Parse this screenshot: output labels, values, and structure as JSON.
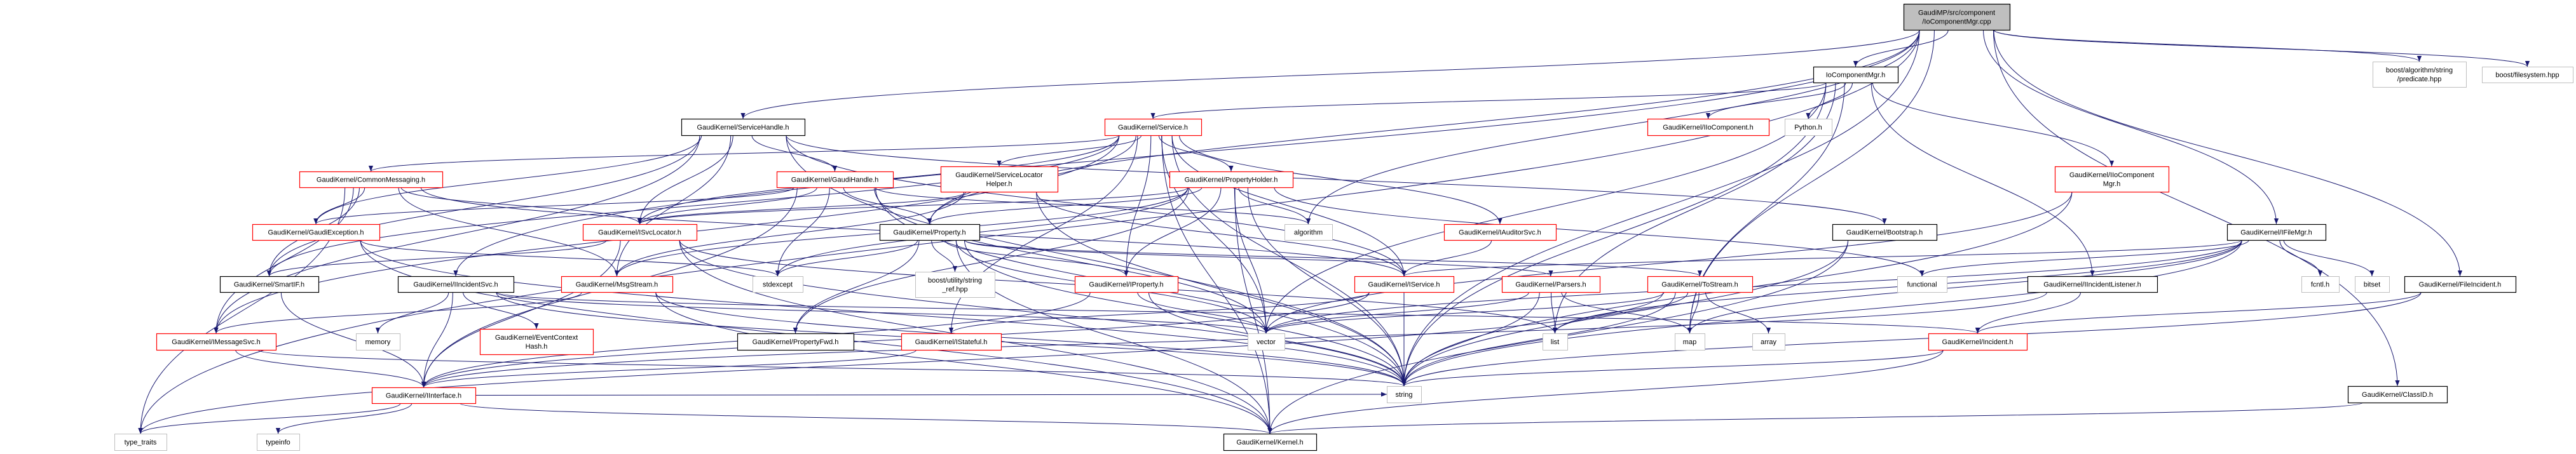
{
  "graph": {
    "edge_color": "#191970",
    "kind_colors": {
      "root": "#bfbfbf",
      "red": "#ff0000",
      "gray": "#bfbfbf",
      "black": "#000000"
    },
    "nodes": [
      {
        "id": "root",
        "kind": "root",
        "lines": [
          "GaudiMP/src/component",
          "/IoComponentMgr.cpp"
        ]
      },
      {
        "id": "iocmgr",
        "kind": "black",
        "lines": [
          "IoComponentMgr.h"
        ]
      },
      {
        "id": "predicate",
        "kind": "gray",
        "lines": [
          "boost/algorithm/string",
          "/predicate.hpp"
        ]
      },
      {
        "id": "filesystem",
        "kind": "gray",
        "lines": [
          "boost/filesystem.hpp"
        ]
      },
      {
        "id": "svchandle",
        "kind": "black",
        "lines": [
          "GaudiKernel/ServiceHandle.h"
        ]
      },
      {
        "id": "service",
        "kind": "red",
        "lines": [
          "GaudiKernel/Service.h"
        ]
      },
      {
        "id": "iiocomp",
        "kind": "red",
        "lines": [
          "GaudiKernel/IIoComponent.h"
        ]
      },
      {
        "id": "python",
        "kind": "gray",
        "lines": [
          "Python.h"
        ]
      },
      {
        "id": "iiocompmgr",
        "kind": "red",
        "lines": [
          "GaudiKernel/IIoComponent",
          "Mgr.h"
        ]
      },
      {
        "id": "commonmsg",
        "kind": "red",
        "lines": [
          "GaudiKernel/CommonMessaging.h"
        ]
      },
      {
        "id": "gaudihandle",
        "kind": "red",
        "lines": [
          "GaudiKernel/GaudiHandle.h"
        ]
      },
      {
        "id": "slhelper",
        "kind": "red",
        "lines": [
          "GaudiKernel/ServiceLocator",
          "Helper.h"
        ]
      },
      {
        "id": "propholder",
        "kind": "red",
        "lines": [
          "GaudiKernel/PropertyHolder.h"
        ]
      },
      {
        "id": "bootstrap",
        "kind": "black",
        "lines": [
          "GaudiKernel/Bootstrap.h"
        ]
      },
      {
        "id": "gaudiexc",
        "kind": "red",
        "lines": [
          "GaudiKernel/GaudiException.h"
        ]
      },
      {
        "id": "isvcloc",
        "kind": "red",
        "lines": [
          "GaudiKernel/ISvcLocator.h"
        ]
      },
      {
        "id": "property",
        "kind": "black",
        "lines": [
          "GaudiKernel/Property.h"
        ]
      },
      {
        "id": "algorithm",
        "kind": "gray",
        "lines": [
          "algorithm"
        ]
      },
      {
        "id": "iauditor",
        "kind": "red",
        "lines": [
          "GaudiKernel/IAuditorSvc.h"
        ]
      },
      {
        "id": "ifilemgr",
        "kind": "black",
        "lines": [
          "GaudiKernel/IFileMgr.h"
        ]
      },
      {
        "id": "smartif",
        "kind": "black",
        "lines": [
          "GaudiKernel/SmartIF.h"
        ]
      },
      {
        "id": "iincsvc",
        "kind": "black",
        "lines": [
          "GaudiKernel/IIncidentSvc.h"
        ]
      },
      {
        "id": "msgstream",
        "kind": "red",
        "lines": [
          "GaudiKernel/MsgStream.h"
        ]
      },
      {
        "id": "stdexcept",
        "kind": "gray",
        "lines": [
          "stdexcept"
        ]
      },
      {
        "id": "stringref",
        "kind": "gray",
        "lines": [
          "boost/utility/string",
          "_ref.hpp"
        ]
      },
      {
        "id": "iproperty",
        "kind": "red",
        "lines": [
          "GaudiKernel/IProperty.h"
        ]
      },
      {
        "id": "iservice",
        "kind": "red",
        "lines": [
          "GaudiKernel/IService.h"
        ]
      },
      {
        "id": "parsers",
        "kind": "red",
        "lines": [
          "GaudiKernel/Parsers.h"
        ]
      },
      {
        "id": "tostream",
        "kind": "red",
        "lines": [
          "GaudiKernel/ToStream.h"
        ]
      },
      {
        "id": "functional",
        "kind": "gray",
        "lines": [
          "functional"
        ]
      },
      {
        "id": "iinclistener",
        "kind": "black",
        "lines": [
          "GaudiKernel/IIncidentListener.h"
        ]
      },
      {
        "id": "fcntl",
        "kind": "gray",
        "lines": [
          "fcntl.h"
        ]
      },
      {
        "id": "bitset",
        "kind": "gray",
        "lines": [
          "bitset"
        ]
      },
      {
        "id": "fileinc",
        "kind": "black",
        "lines": [
          "GaudiKernel/FileIncident.h"
        ]
      },
      {
        "id": "imsgsvc",
        "kind": "red",
        "lines": [
          "GaudiKernel/IMessageSvc.h"
        ]
      },
      {
        "id": "memory",
        "kind": "gray",
        "lines": [
          "memory"
        ]
      },
      {
        "id": "evctxhash",
        "kind": "red",
        "lines": [
          "GaudiKernel/EventContext",
          "Hash.h"
        ]
      },
      {
        "id": "propfwd",
        "kind": "black",
        "lines": [
          "GaudiKernel/PropertyFwd.h"
        ]
      },
      {
        "id": "istateful",
        "kind": "red",
        "lines": [
          "GaudiKernel/IStateful.h"
        ]
      },
      {
        "id": "vector",
        "kind": "gray",
        "lines": [
          "vector"
        ]
      },
      {
        "id": "list",
        "kind": "gray",
        "lines": [
          "list"
        ]
      },
      {
        "id": "map",
        "kind": "gray",
        "lines": [
          "map"
        ]
      },
      {
        "id": "array",
        "kind": "gray",
        "lines": [
          "array"
        ]
      },
      {
        "id": "incident",
        "kind": "red",
        "lines": [
          "GaudiKernel/Incident.h"
        ]
      },
      {
        "id": "iinterface",
        "kind": "red",
        "lines": [
          "GaudiKernel/IInterface.h"
        ]
      },
      {
        "id": "string",
        "kind": "gray",
        "lines": [
          "string"
        ]
      },
      {
        "id": "classid",
        "kind": "black",
        "lines": [
          "GaudiKernel/ClassID.h"
        ]
      },
      {
        "id": "typetraits",
        "kind": "gray",
        "lines": [
          "type_traits"
        ]
      },
      {
        "id": "typeinfo",
        "kind": "gray",
        "lines": [
          "typeinfo"
        ]
      },
      {
        "id": "kernel",
        "kind": "black",
        "lines": [
          "GaudiKernel/Kernel.h"
        ]
      }
    ],
    "edges": [
      [
        "root",
        "iocmgr"
      ],
      [
        "root",
        "predicate"
      ],
      [
        "root",
        "filesystem"
      ],
      [
        "root",
        "svchandle"
      ],
      [
        "root",
        "ifilemgr"
      ],
      [
        "root",
        "fileinc"
      ],
      [
        "root",
        "iincsvc"
      ],
      [
        "root",
        "typetraits"
      ],
      [
        "root",
        "property"
      ],
      [
        "root",
        "string"
      ],
      [
        "root",
        "map"
      ],
      [
        "root",
        "algorithm"
      ],
      [
        "root",
        "classid"
      ],
      [
        "iocmgr",
        "service"
      ],
      [
        "iocmgr",
        "iiocomp"
      ],
      [
        "iocmgr",
        "python"
      ],
      [
        "iocmgr",
        "iiocompmgr"
      ],
      [
        "iocmgr",
        "iinclistener"
      ],
      [
        "iocmgr",
        "list"
      ],
      [
        "iocmgr",
        "string"
      ],
      [
        "iocmgr",
        "vector"
      ],
      [
        "iocmgr",
        "map"
      ],
      [
        "svchandle",
        "gaudihandle"
      ],
      [
        "svchandle",
        "imsgsvc"
      ],
      [
        "svchandle",
        "isvcloc"
      ],
      [
        "svchandle",
        "iservice"
      ],
      [
        "svchandle",
        "msgstream"
      ],
      [
        "svchandle",
        "gaudiexc"
      ],
      [
        "svchandle",
        "bootstrap"
      ],
      [
        "svchandle",
        "smartif"
      ],
      [
        "svchandle",
        "string"
      ],
      [
        "service",
        "slhelper"
      ],
      [
        "service",
        "propholder"
      ],
      [
        "service",
        "property"
      ],
      [
        "service",
        "iservice"
      ],
      [
        "service",
        "iauditor"
      ],
      [
        "service",
        "commonmsg"
      ],
      [
        "service",
        "isvcloc"
      ],
      [
        "service",
        "smartif"
      ],
      [
        "service",
        "imsgsvc"
      ],
      [
        "service",
        "kernel"
      ],
      [
        "service",
        "vector"
      ],
      [
        "service",
        "string"
      ],
      [
        "service",
        "istateful"
      ],
      [
        "service",
        "iproperty"
      ],
      [
        "commonmsg",
        "gaudiexc"
      ],
      [
        "commonmsg",
        "imsgsvc"
      ],
      [
        "commonmsg",
        "msgstream"
      ],
      [
        "commonmsg",
        "smartif"
      ],
      [
        "commonmsg",
        "isvcloc"
      ],
      [
        "commonmsg",
        "iservice"
      ],
      [
        "commonmsg",
        "typetraits"
      ],
      [
        "gaudihandle",
        "gaudiexc"
      ],
      [
        "gaudihandle",
        "isvcloc"
      ],
      [
        "gaudihandle",
        "property"
      ],
      [
        "gaudihandle",
        "stdexcept"
      ],
      [
        "gaudihandle",
        "algorithm"
      ],
      [
        "gaudihandle",
        "string"
      ],
      [
        "gaudihandle",
        "vector"
      ],
      [
        "gaudihandle",
        "iinterface"
      ],
      [
        "slhelper",
        "isvcloc"
      ],
      [
        "slhelper",
        "iservice"
      ],
      [
        "slhelper",
        "msgstream"
      ],
      [
        "slhelper",
        "string"
      ],
      [
        "propholder",
        "property"
      ],
      [
        "propholder",
        "iproperty"
      ],
      [
        "propholder",
        "algorithm"
      ],
      [
        "propholder",
        "stdexcept"
      ],
      [
        "propholder",
        "functional"
      ],
      [
        "propholder",
        "vector"
      ],
      [
        "propholder",
        "string"
      ],
      [
        "propholder",
        "kernel"
      ],
      [
        "propholder",
        "propfwd"
      ],
      [
        "propholder",
        "isvcloc"
      ],
      [
        "propholder",
        "msgstream"
      ],
      [
        "property",
        "iproperty"
      ],
      [
        "property",
        "propfwd"
      ],
      [
        "property",
        "stdexcept"
      ],
      [
        "property",
        "stringref"
      ],
      [
        "property",
        "parsers"
      ],
      [
        "property",
        "tostream"
      ],
      [
        "property",
        "kernel"
      ],
      [
        "property",
        "string"
      ],
      [
        "property",
        "vector"
      ],
      [
        "gaudiexc",
        "kernel"
      ],
      [
        "gaudiexc",
        "string"
      ],
      [
        "gaudiexc",
        "stdexcept"
      ],
      [
        "isvcloc",
        "iinterface"
      ],
      [
        "isvcloc",
        "smartif"
      ],
      [
        "isvcloc",
        "kernel"
      ],
      [
        "isvcloc",
        "string"
      ],
      [
        "isvcloc",
        "list"
      ],
      [
        "iauditor",
        "iservice"
      ],
      [
        "bootstrap",
        "string"
      ],
      [
        "bootstrap",
        "kernel"
      ],
      [
        "iiocompmgr",
        "string"
      ],
      [
        "iiocompmgr",
        "vector"
      ],
      [
        "ifilemgr",
        "functional"
      ],
      [
        "ifilemgr",
        "fcntl"
      ],
      [
        "ifilemgr",
        "bitset"
      ],
      [
        "ifilemgr",
        "map"
      ],
      [
        "ifilemgr",
        "list"
      ],
      [
        "ifilemgr",
        "string"
      ],
      [
        "ifilemgr",
        "vector"
      ],
      [
        "ifilemgr",
        "iservice"
      ],
      [
        "fileinc",
        "incident"
      ],
      [
        "fileinc",
        "string"
      ],
      [
        "classid",
        "kernel"
      ],
      [
        "iinclistener",
        "incident"
      ],
      [
        "iinclistener",
        "iinterface"
      ],
      [
        "incident",
        "string"
      ],
      [
        "incident",
        "kernel"
      ],
      [
        "iincsvc",
        "memory"
      ],
      [
        "iincsvc",
        "iinterface"
      ],
      [
        "iincsvc",
        "evctxhash"
      ],
      [
        "iincsvc",
        "string"
      ],
      [
        "iincsvc",
        "vector"
      ],
      [
        "iincsvc",
        "incident"
      ],
      [
        "smartif",
        "iinterface"
      ],
      [
        "imsgsvc",
        "iinterface"
      ],
      [
        "imsgsvc",
        "string"
      ],
      [
        "msgstream",
        "imsgsvc"
      ],
      [
        "msgstream",
        "string"
      ],
      [
        "msgstream",
        "kernel"
      ],
      [
        "iinterface",
        "typeinfo"
      ],
      [
        "iinterface",
        "typetraits"
      ],
      [
        "iinterface",
        "kernel"
      ],
      [
        "iinterface",
        "string"
      ],
      [
        "iproperty",
        "string"
      ],
      [
        "iproperty",
        "vector"
      ],
      [
        "iproperty",
        "iinterface"
      ],
      [
        "iservice",
        "string"
      ],
      [
        "iservice",
        "iinterface"
      ],
      [
        "iservice",
        "istateful"
      ],
      [
        "parsers",
        "list"
      ],
      [
        "parsers",
        "map"
      ],
      [
        "parsers",
        "vector"
      ],
      [
        "parsers",
        "string"
      ],
      [
        "tostream",
        "list"
      ],
      [
        "tostream",
        "map"
      ],
      [
        "tostream",
        "array"
      ],
      [
        "tostream",
        "vector"
      ],
      [
        "tostream",
        "string"
      ],
      [
        "tostream",
        "typetraits"
      ],
      [
        "istateful",
        "iinterface"
      ]
    ]
  }
}
